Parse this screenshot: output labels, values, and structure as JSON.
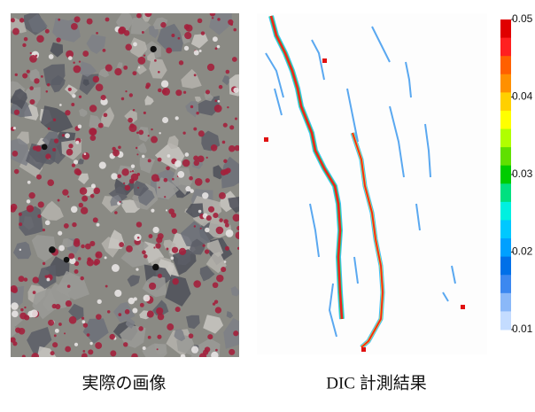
{
  "captions": [
    "実際の画像",
    "DIC 計測結果"
  ],
  "colorbar": {
    "ticks": [
      0.05,
      0.04,
      0.03,
      0.02,
      0.01
    ]
  }
}
